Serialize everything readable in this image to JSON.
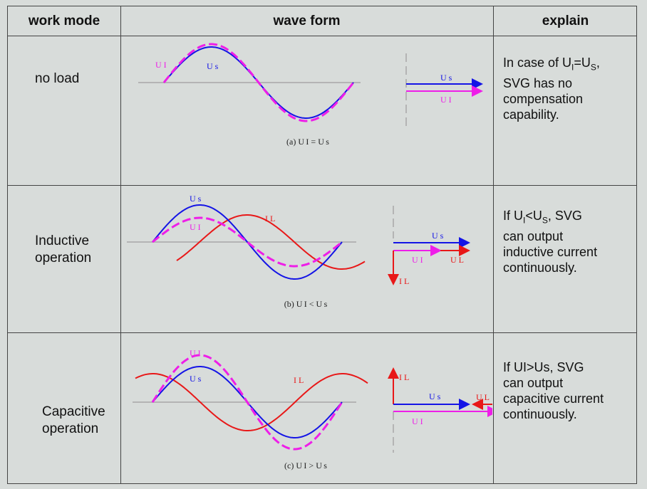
{
  "header": {
    "col_mode": "work mode",
    "col_wave": "wave form",
    "col_explain": "explain"
  },
  "rows": [
    {
      "mode": "no load",
      "caption": "(a)  U I = U s",
      "labels": {
        "ui": "U I",
        "us": "U s",
        "vec_us": "U s",
        "vec_ui": "U I"
      },
      "explain": {
        "line1_pre": "In case of U",
        "line1_sub1": "I",
        "line1_mid": "=U",
        "line1_sub2": "S",
        "line1_post": ",",
        "line2": "SVG has no",
        "line3": "compensation",
        "line4": "capability."
      }
    },
    {
      "mode_line1": "Inductive",
      "mode_line2": "operation",
      "caption": "(b)  U I < U s",
      "labels": {
        "us": "U s",
        "ui": "U I",
        "il": "I L",
        "vec_us": "U s",
        "vec_ui": "U I",
        "vec_ul": "U L",
        "vec_il": "I L"
      },
      "explain": {
        "line1_pre": "If U",
        "line1_sub1": "I",
        "line1_mid": "<U",
        "line1_sub2": "S",
        "line1_post": ",  SVG",
        "line2": "can output",
        "line3": "inductive current",
        "line4": "continuously."
      }
    },
    {
      "mode_line1": "Capacitive",
      "mode_line2": "operation",
      "caption": "(c)  U I > U s",
      "labels": {
        "ui": "U I",
        "us": "U s",
        "il": "I L",
        "vec_il": "I L",
        "vec_us": "U s",
        "vec_ul": "U L",
        "vec_ui": "U I"
      },
      "explain": {
        "line1": "If UI>Us,  SVG",
        "line2": "can output",
        "line3": "capacitive current",
        "line4": "continuously."
      }
    }
  ],
  "colors": {
    "us_wave": "#1414e6",
    "ui_wave": "#ee1ee8",
    "il_wave": "#e81818",
    "axis": "#b4b4b4"
  }
}
